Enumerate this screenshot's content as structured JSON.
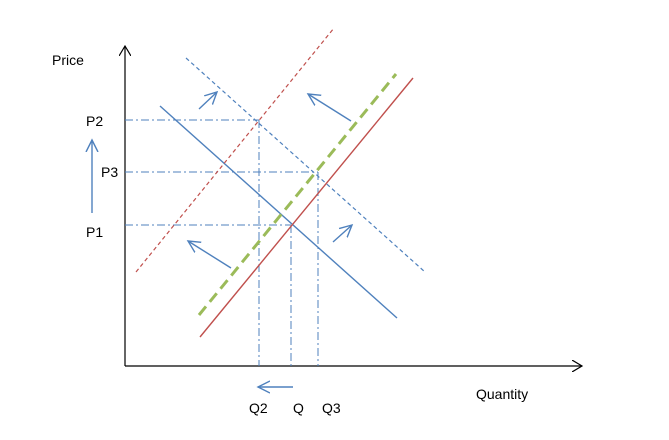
{
  "axes": {
    "y_label": "Price",
    "x_label": "Quantity"
  },
  "price_labels": {
    "p1": "P1",
    "p2": "P2",
    "p3": "P3"
  },
  "quantity_labels": {
    "q2": "Q2",
    "q": "Q",
    "q3": "Q3"
  },
  "colors": {
    "axis": "#000000",
    "demand": "#4F81BD",
    "supply": "#C0504D",
    "shifted_supply": "#9BBB59",
    "guide": "#4F81BD",
    "arrow": "#4F81BD"
  }
}
